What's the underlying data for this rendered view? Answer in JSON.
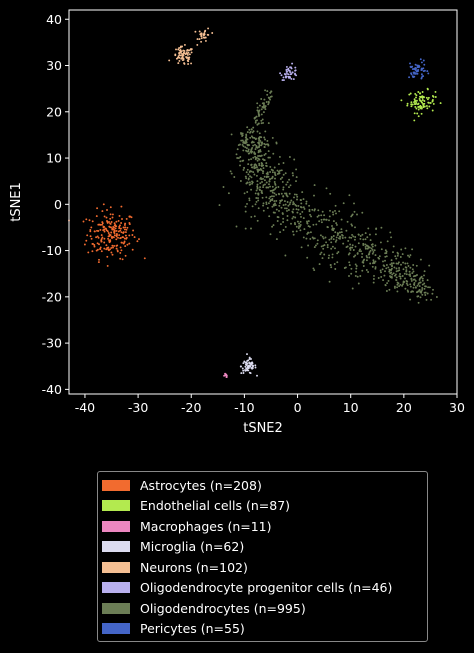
{
  "chart_data": {
    "type": "scatter",
    "xlabel": "tSNE2",
    "ylabel": "tSNE1",
    "xlim": [
      -43,
      30
    ],
    "ylim": [
      -41,
      42
    ],
    "xticks": [
      -40,
      -30,
      -20,
      -10,
      0,
      10,
      20,
      30
    ],
    "yticks": [
      -40,
      -30,
      -20,
      -10,
      0,
      10,
      20,
      30,
      40
    ],
    "grid": false,
    "legend_position": "below",
    "series": [
      {
        "name": "Astrocytes (n=208)",
        "color": "#f26b2f",
        "count": 208,
        "clusters": [
          {
            "cx": -35,
            "cy": -6.5,
            "sx": 2.3,
            "sy": 2.6
          }
        ]
      },
      {
        "name": "Endothelial cells (n=87)",
        "color": "#b3ea4f",
        "count": 87,
        "clusters": [
          {
            "cx": 23.3,
            "cy": 22.2,
            "sx": 1.3,
            "sy": 1.2
          }
        ]
      },
      {
        "name": "Macrophages (n=11)",
        "color": "#ec87c0",
        "count": 11,
        "clusters": [
          {
            "cx": -13.5,
            "cy": -37,
            "sx": 0.2,
            "sy": 0.2
          }
        ]
      },
      {
        "name": "Microglia (n=62)",
        "color": "#dcdcf0",
        "count": 62,
        "clusters": [
          {
            "cx": -9.2,
            "cy": -35,
            "sx": 0.7,
            "sy": 0.8
          }
        ]
      },
      {
        "name": "Neurons (n=102)",
        "color": "#f5bf93",
        "count": 102,
        "clusters": [
          {
            "cx": -21.5,
            "cy": 32,
            "sx": 1.0,
            "sy": 1.0,
            "w": 0.72
          },
          {
            "cx": -17.5,
            "cy": 36.5,
            "sx": 0.6,
            "sy": 0.8,
            "w": 0.28
          }
        ]
      },
      {
        "name": "Oligodendrocyte progenitor cells (n=46)",
        "color": "#b9b0ee",
        "count": 46,
        "clusters": [
          {
            "cx": -1.5,
            "cy": 28.5,
            "sx": 0.8,
            "sy": 0.8
          }
        ]
      },
      {
        "name": "Oligodendrocytes (n=995)",
        "color": "#6b7d55",
        "count": 995,
        "path": [
          [
            -8,
            15
          ],
          [
            -8,
            12
          ],
          [
            -7.5,
            8
          ],
          [
            -6.5,
            4
          ],
          [
            -4,
            1
          ],
          [
            0,
            -2
          ],
          [
            4,
            -4.5
          ],
          [
            8,
            -7
          ],
          [
            12,
            -10
          ],
          [
            16,
            -13
          ],
          [
            20,
            -16
          ],
          [
            24,
            -19
          ]
        ],
        "arm": [
          [
            -7.5,
            17
          ],
          [
            -7,
            20
          ],
          [
            -6,
            22.5
          ],
          [
            -4.5,
            24.5
          ]
        ]
      },
      {
        "name": "Pericytes (n=55)",
        "color": "#4465c7",
        "count": 55,
        "clusters": [
          {
            "cx": 22.5,
            "cy": 29,
            "sx": 0.8,
            "sy": 1.0
          }
        ]
      }
    ]
  }
}
